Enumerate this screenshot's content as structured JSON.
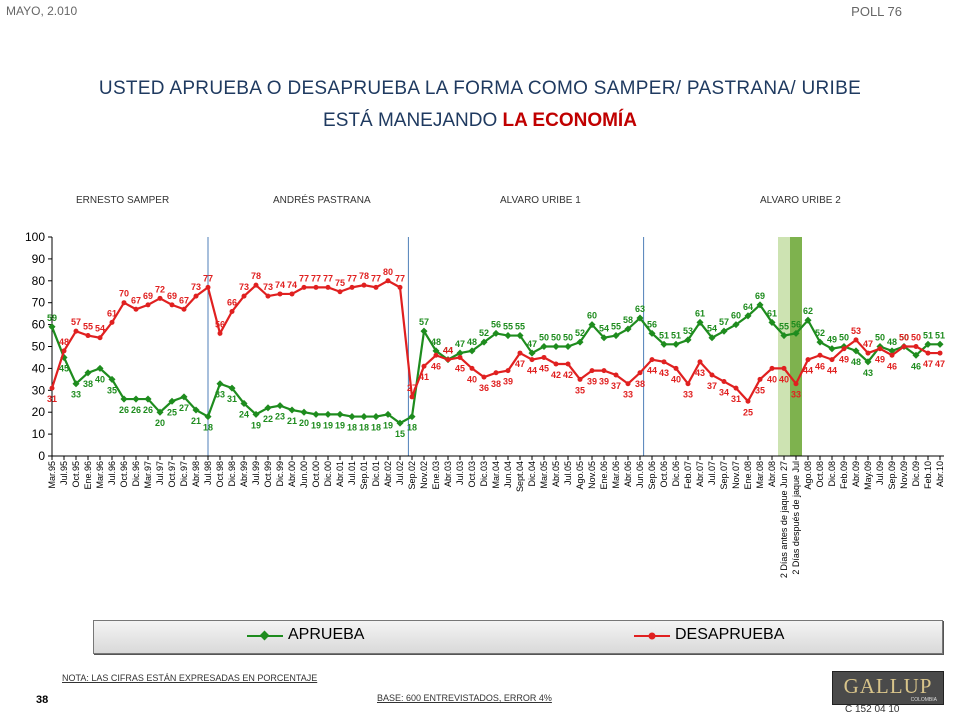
{
  "header": {
    "date": "MAYO, 2.010",
    "poll": "POLL 76"
  },
  "title": {
    "line1": "USTED APRUEBA O DESAPRUEBA LA FORMA COMO SAMPER/ PASTRANA/ URIBE",
    "line2_prefix": "ESTÁ MANEJANDO ",
    "line2_highlight": "LA ECONOMÍA"
  },
  "periods": [
    "ERNESTO SAMPER",
    "ANDRÉS  PASTRANA",
    "ALVARO URIBE 1",
    "ALVARO URIBE 2"
  ],
  "legend": {
    "approve": "APRUEBA",
    "disapprove": "DESAPRUEBA"
  },
  "footer": {
    "note": "NOTA: LAS CIFRAS ESTÁN EXPRESADAS EN PORCENTAJE",
    "page": "38",
    "base": "BASE: 600 ENTREVISTADOS, ERROR 4%",
    "logo": "GALLUP",
    "logo_sub": "COLOMBIA",
    "code": "C 152 04 10"
  },
  "colors": {
    "approve": "#1e8c1e",
    "disapprove": "#e02020",
    "title": "#1f3a60",
    "highlight": "#c00000",
    "band_light": "#cde3b2",
    "band_dark": "#7eb24e",
    "divider": "#4f7fb8"
  },
  "chart_data": {
    "type": "line",
    "ylim": [
      0,
      100
    ],
    "yticks": [
      0,
      10,
      20,
      30,
      40,
      50,
      60,
      70,
      80,
      90,
      100
    ],
    "grid": false,
    "legend_position": "bottom",
    "x": [
      "Mar.95",
      "Jul.95",
      "Oct.95",
      "Ene.96",
      "Mar.96",
      "Jul.96",
      "Oct.96",
      "Dic.96",
      "Mar.97",
      "Jul.97",
      "Oct.97",
      "Dic.97",
      "Abr.98",
      "Jul.98",
      "Oct.98",
      "Dic.98",
      "Abr.99",
      "Jul.99",
      "Oct.99",
      "Dic.99",
      "Abr.00",
      "Jun.00",
      "Oct.00",
      "Dic.00",
      "Abr.01",
      "Jul.01",
      "Sep.01",
      "Dic.01",
      "Abr.02",
      "Jul.02",
      "Sep.02",
      "Nov.02",
      "Ene.03",
      "Abr.03",
      "Jul.03",
      "Oct.03",
      "Dic.03",
      "Mar.04",
      "Jun.04",
      "Sept.04",
      "Dic.04",
      "Mar.05",
      "Abr.05",
      "Jul.05",
      "Ago.05",
      "Nov.05",
      "Ene.06",
      "Mar.06",
      "Abr.06",
      "Jun.06",
      "Sep.06",
      "Oct.06",
      "Dic.06",
      "Feb.07",
      "Abr.07",
      "Jul.07",
      "Sep.07",
      "Nov.07",
      "Ene.08",
      "Mar.08",
      "Abr.08",
      "2 Días antes de jaque Jun 27",
      "2 Días después de jaque Jul",
      "Ago.08",
      "Oct.08",
      "Dic.08",
      "Feb.09",
      "Abr.09",
      "May.09",
      "Jul.09",
      "Sep.09",
      "Nov.09",
      "Dic.09",
      "Feb.10",
      "Abr.10"
    ],
    "series": [
      {
        "name": "APRUEBA",
        "values": [
          59,
          45,
          33,
          38,
          40,
          35,
          26,
          26,
          26,
          20,
          25,
          27,
          21,
          18,
          33,
          31,
          24,
          19,
          22,
          23,
          21,
          20,
          19,
          19,
          19,
          18,
          18,
          18,
          19,
          15,
          18,
          57,
          48,
          44,
          47,
          48,
          52,
          56,
          55,
          55,
          47,
          50,
          50,
          50,
          52,
          60,
          54,
          55,
          58,
          63,
          56,
          51,
          51,
          53,
          61,
          54,
          57,
          60,
          64,
          69,
          61,
          55,
          56,
          62,
          52,
          49,
          50,
          48,
          43,
          50,
          48,
          50,
          46,
          51,
          51
        ]
      },
      {
        "name": "DESAPRUEBA",
        "values": [
          31,
          48,
          57,
          55,
          54,
          61,
          70,
          67,
          69,
          72,
          69,
          67,
          73,
          77,
          56,
          66,
          73,
          78,
          73,
          74,
          74,
          77,
          77,
          77,
          75,
          77,
          78,
          77,
          80,
          77,
          27,
          41,
          46,
          44,
          45,
          40,
          36,
          38,
          39,
          47,
          44,
          45,
          42,
          42,
          35,
          39,
          39,
          37,
          33,
          38,
          44,
          43,
          40,
          33,
          43,
          37,
          34,
          31,
          25,
          35,
          40,
          40,
          33,
          44,
          46,
          44,
          49,
          53,
          47,
          49,
          46,
          50,
          50,
          47,
          47
        ]
      }
    ]
  }
}
